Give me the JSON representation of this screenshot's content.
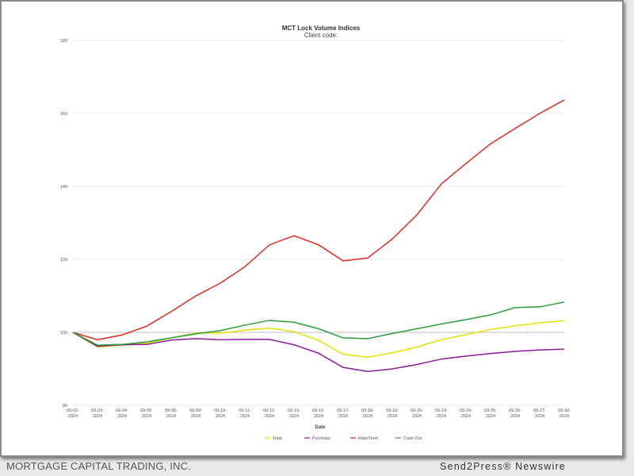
{
  "chart_data": {
    "type": "line",
    "title": "MCT Lock Volume Indices",
    "subtitle": "Client code:",
    "xlabel": "Date",
    "ylabel": "",
    "ylim": [
      80,
      180
    ],
    "yticks": [
      80,
      100,
      120,
      140,
      160,
      180
    ],
    "reference_line": 100,
    "grid": true,
    "legend": "bottom-center",
    "categories": [
      "09-02-2024",
      "09-03-2024",
      "09-04-2024",
      "09-05-2024",
      "09-06-2024",
      "09-09-2024",
      "09-10-2024",
      "09-11-2024",
      "09-12-2024",
      "09-13-2024",
      "09-16-2024",
      "09-17-2024",
      "09-18-2024",
      "09-19-2024",
      "09-20-2024",
      "09-23-2024",
      "09-24-2024",
      "09-25-2024",
      "09-26-2024",
      "09-27-2024",
      "09-30-2024"
    ],
    "series": [
      {
        "name": "Total",
        "color": "#e5e000",
        "values": [
          100,
          96,
          96.5,
          97,
          98.5,
          99.8,
          99.8,
          100.6,
          101.2,
          100.2,
          97.8,
          94,
          93.2,
          94.4,
          96,
          98,
          99.4,
          100.8,
          101.8,
          102.6,
          103.2
        ]
      },
      {
        "name": "Purchase",
        "color": "#8b1a9b",
        "values": [
          100,
          96.2,
          96.6,
          96.7,
          97.9,
          98.3,
          98,
          98.1,
          98.1,
          96.6,
          94.3,
          90.4,
          89.3,
          90,
          91.2,
          92.7,
          93.5,
          94.2,
          94.8,
          95.2,
          95.4
        ]
      },
      {
        "name": "Rate/Term",
        "color": "#e8281e",
        "values": [
          100,
          98,
          99.3,
          101.7,
          105.7,
          110,
          113.5,
          118,
          124,
          126.5,
          124,
          119.6,
          120.4,
          125.6,
          132.2,
          140.7,
          146.3,
          151.7,
          155.9,
          160,
          163.7
        ]
      },
      {
        "name": "Cash Out",
        "color": "#2a9d3a",
        "values": [
          100,
          96.5,
          96.7,
          97.4,
          98.5,
          99.6,
          100.5,
          102,
          103.3,
          102.8,
          101,
          98.5,
          98.3,
          99.7,
          101,
          102.3,
          103.5,
          104.8,
          106.8,
          107,
          108.3
        ]
      }
    ]
  },
  "footer": {
    "company": "MORTGAGE CAPITAL TRADING, INC.",
    "newswire": "Send2Press® Newswire"
  }
}
